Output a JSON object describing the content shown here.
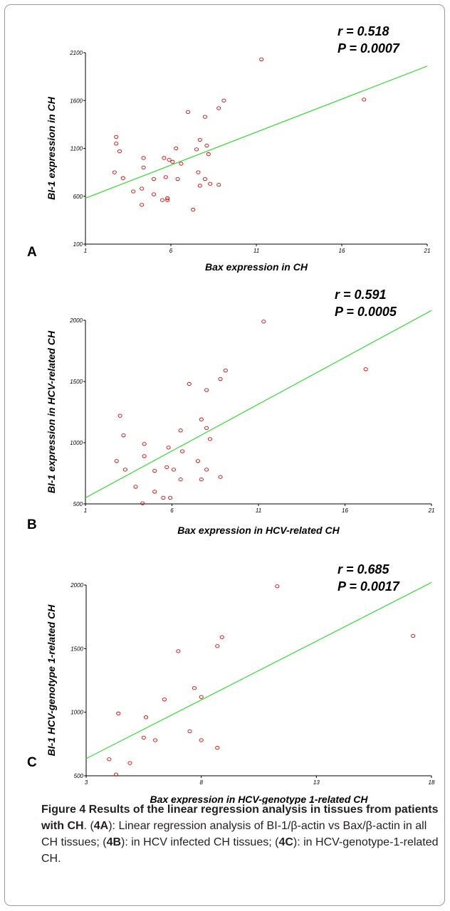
{
  "chart_data": [
    {
      "type": "scatter",
      "panel_label": "A",
      "xlabel": "Bax expression in CH",
      "ylabel": "BI-1 expression in CH",
      "xlim": [
        1,
        21
      ],
      "ylim": [
        100,
        2100
      ],
      "xticks": [
        "1",
        "6",
        "11",
        "16",
        "21"
      ],
      "yticks": [
        "100",
        "600",
        "1100",
        "1600",
        "2100"
      ],
      "stats": [
        "r = 0.518",
        "P = 0.0007"
      ],
      "regression_line": {
        "x": [
          1,
          21
        ],
        "y": [
          580,
          1960
        ]
      },
      "colors": {
        "points": "#dd0000",
        "line": "#22dd22"
      },
      "x": [
        11.3,
        17.3,
        9.1,
        8.8,
        7.0,
        8.0,
        7.7,
        2.8,
        2.8,
        8.1,
        3.0,
        6.3,
        7.5,
        4.4,
        5.6,
        5.9,
        8.2,
        6.6,
        6.1,
        2.7,
        4.4,
        7.6,
        3.2,
        8.0,
        5.7,
        5.0,
        6.4,
        7.7,
        4.3,
        3.8,
        8.3,
        8.8,
        5.0,
        5.8,
        5.5,
        5.8,
        4.3,
        7.3
      ],
      "y": [
        2030,
        1610,
        1600,
        1520,
        1480,
        1430,
        1190,
        1220,
        1150,
        1130,
        1070,
        1100,
        1090,
        1000,
        1000,
        980,
        1040,
        940,
        960,
        850,
        900,
        850,
        790,
        780,
        800,
        780,
        780,
        710,
        680,
        650,
        730,
        720,
        620,
        580,
        560,
        560,
        510,
        460
      ]
    },
    {
      "type": "scatter",
      "panel_label": "B",
      "xlabel": "Bax expression in HCV-related CH",
      "ylabel": "BI-1 expression in HCV-related CH",
      "xlim": [
        1,
        21
      ],
      "ylim": [
        500,
        2000
      ],
      "xticks": [
        "1",
        "6",
        "11",
        "16",
        "21"
      ],
      "yticks": [
        "500",
        "1000",
        "1500",
        "2000"
      ],
      "stats": [
        "r = 0.591",
        "P = 0.0005"
      ],
      "regression_line": {
        "x": [
          1,
          21
        ],
        "y": [
          550,
          2080
        ]
      },
      "colors": {
        "points": "#dd0000",
        "line": "#22dd22"
      },
      "x": [
        11.3,
        17.2,
        9.1,
        8.8,
        7.0,
        8.0,
        7.7,
        3.0,
        3.2,
        6.5,
        8.0,
        4.4,
        4.4,
        5.8,
        6.6,
        8.2,
        2.8,
        7.5,
        3.3,
        5.0,
        5.7,
        6.1,
        8.0,
        3.9,
        6.5,
        7.7,
        8.8,
        5.0,
        5.5,
        5.9,
        4.3
      ],
      "y": [
        1990,
        1600,
        1590,
        1520,
        1480,
        1430,
        1190,
        1220,
        1060,
        1100,
        1120,
        990,
        890,
        960,
        930,
        1030,
        850,
        850,
        780,
        770,
        800,
        780,
        780,
        640,
        700,
        700,
        720,
        600,
        550,
        550,
        505
      ]
    },
    {
      "type": "scatter",
      "panel_label": "C",
      "xlabel": "Bax expression in HCV-genotype 1-related CH",
      "ylabel": "BI-1 HCV-genotype 1-related CH",
      "xlim": [
        3,
        18
      ],
      "ylim": [
        500,
        2000
      ],
      "xticks": [
        "3",
        "8",
        "13",
        "18"
      ],
      "yticks": [
        "500",
        "1000",
        "1500",
        "2000"
      ],
      "stats": [
        "r = 0.685",
        "P = 0.0017"
      ],
      "regression_line": {
        "x": [
          3,
          18
        ],
        "y": [
          635,
          2020
        ]
      },
      "colors": {
        "points": "#dd0000",
        "line": "#22dd22"
      },
      "x": [
        11.3,
        17.2,
        8.9,
        8.7,
        7.0,
        7.7,
        8.0,
        6.4,
        4.4,
        5.6,
        7.5,
        5.5,
        6.0,
        8.0,
        8.7,
        4.0,
        4.3,
        4.9
      ],
      "y": [
        1990,
        1600,
        1590,
        1520,
        1480,
        1190,
        1120,
        1100,
        990,
        960,
        850,
        800,
        780,
        780,
        720,
        630,
        510,
        600
      ]
    }
  ],
  "caption": {
    "title": "Figure 4 Results of the linear regression analysis in tissues from patients with CH",
    "body_parts": [
      ". (",
      "4A",
      "): Linear regression analysis of BI-1/β-actin vs Bax/β-actin in all CH tissues; (",
      "4B",
      "): in HCV infected CH tissues; (",
      "4C",
      "): in HCV-genotype-1-related CH."
    ]
  }
}
